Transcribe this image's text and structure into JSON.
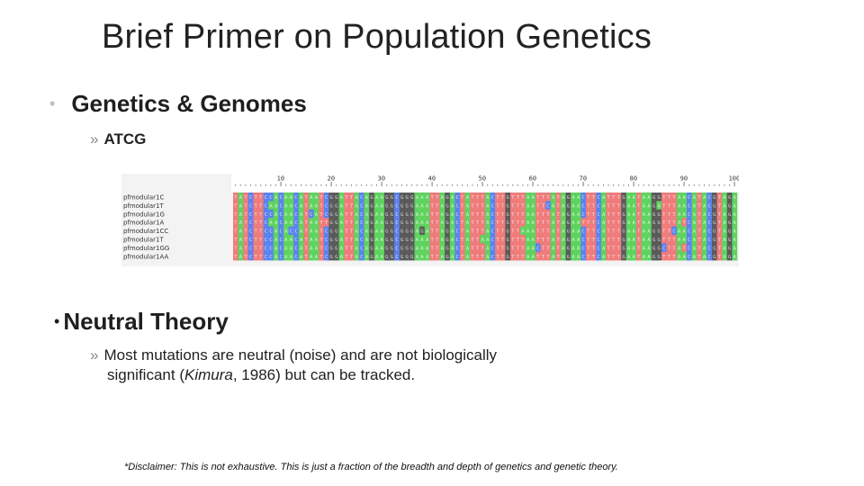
{
  "slide": {
    "title": "Brief Primer on Population Genetics",
    "bullet1": {
      "label": "Genetics & Genomes",
      "sub": "ATCG"
    },
    "bullet2": {
      "label": "Neutral Theory",
      "sub_part1": "Most mutations are neutral (noise) and are not biologically",
      "sub_part2_pre": "significant (",
      "sub_part2_italic": "Kimura",
      "sub_part2_post": ", 1986) but can be tracked."
    },
    "disclaimer": "*Disclaimer: This is not exhaustive. This is just a fraction of the breadth and depth of genetics and genetic theory."
  },
  "alignment": {
    "ruler_ticks": [
      "10",
      "20",
      "30",
      "40",
      "50",
      "60",
      "70",
      "80",
      "90",
      "100"
    ],
    "sequence_names": [
      "pfmodular1C",
      "pfmodular1T",
      "pfmodular1G",
      "pfmodular1A",
      "pfmodular1CC",
      "pfmodular1T",
      "pfmodular1GG",
      "pfmodular1AA"
    ],
    "colors": {
      "A": "#5ed35e",
      "T": "#ef7b7b",
      "G": "#5a5a5a",
      "C": "#5a82ef"
    }
  }
}
